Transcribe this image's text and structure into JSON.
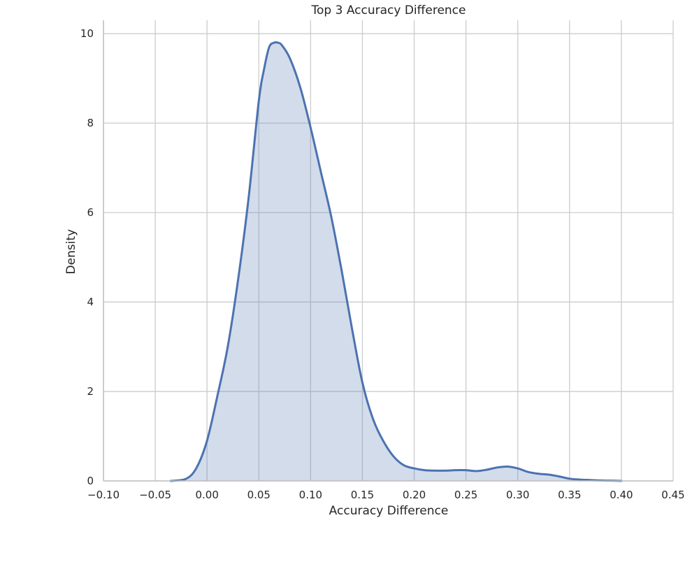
{
  "chart_data": {
    "type": "area",
    "title": "Top 3 Accuracy Difference",
    "xlabel": "Accuracy Difference",
    "ylabel": "Density",
    "xlim": [
      -0.1,
      0.45
    ],
    "ylim": [
      0,
      10.3
    ],
    "x_ticks": [
      "−0.10",
      "−0.05",
      "0.00",
      "0.05",
      "0.10",
      "0.15",
      "0.20",
      "0.25",
      "0.30",
      "0.35",
      "0.40",
      "0.45"
    ],
    "y_ticks": [
      "0",
      "2",
      "4",
      "6",
      "8",
      "10"
    ],
    "grid": true,
    "colors": {
      "line": "#4c72b0",
      "fill": "#4c72b0",
      "grid": "#cccccc",
      "axis": "#bfbfbf"
    },
    "series": [
      {
        "x": [
          -0.035,
          -0.02,
          -0.01,
          0.0,
          0.01,
          0.02,
          0.03,
          0.04,
          0.05,
          0.055,
          0.06,
          0.065,
          0.068,
          0.072,
          0.08,
          0.09,
          0.1,
          0.11,
          0.12,
          0.13,
          0.14,
          0.15,
          0.16,
          0.17,
          0.18,
          0.19,
          0.2,
          0.21,
          0.22,
          0.23,
          0.24,
          0.25,
          0.26,
          0.27,
          0.28,
          0.29,
          0.3,
          0.31,
          0.32,
          0.33,
          0.34,
          0.35,
          0.36,
          0.37,
          0.38,
          0.39,
          0.4
        ],
        "y": [
          0.0,
          0.05,
          0.3,
          0.9,
          1.9,
          3.0,
          4.5,
          6.3,
          8.5,
          9.2,
          9.7,
          9.8,
          9.8,
          9.75,
          9.45,
          8.8,
          7.9,
          6.9,
          5.9,
          4.7,
          3.4,
          2.2,
          1.4,
          0.9,
          0.55,
          0.35,
          0.28,
          0.24,
          0.23,
          0.23,
          0.24,
          0.24,
          0.22,
          0.25,
          0.3,
          0.32,
          0.28,
          0.2,
          0.16,
          0.14,
          0.1,
          0.05,
          0.03,
          0.02,
          0.01,
          0.005,
          0.0
        ]
      }
    ]
  }
}
